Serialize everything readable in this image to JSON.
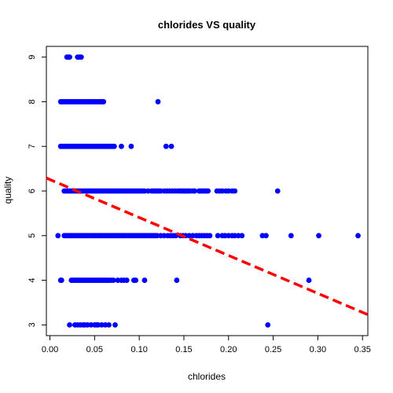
{
  "chart_data": {
    "type": "scatter",
    "title": "chlorides VS quality",
    "xlabel": "chlorides",
    "ylabel": "quality",
    "xlim": [
      -0.004,
      0.356
    ],
    "ylim": [
      2.76,
      9.24
    ],
    "x_ticks": [
      "0.00",
      "0.05",
      "0.10",
      "0.15",
      "0.20",
      "0.25",
      "0.30",
      "0.35"
    ],
    "x_tick_values": [
      0.0,
      0.05,
      0.1,
      0.15,
      0.2,
      0.25,
      0.3,
      0.35
    ],
    "y_ticks": [
      "3",
      "4",
      "5",
      "6",
      "7",
      "8",
      "9"
    ],
    "y_tick_values": [
      3,
      4,
      5,
      6,
      7,
      8,
      9
    ],
    "point_color": "#0000ff",
    "line_color": "#ff0000",
    "regression_line": {
      "x": [
        -0.004,
        0.356
      ],
      "y": [
        6.29,
        3.23
      ]
    },
    "points": [
      {
        "q": 9,
        "x": [
          0.019,
          0.021,
          0.022,
          0.031,
          0.033,
          0.035
        ]
      },
      {
        "q": 8,
        "x": [
          0.012,
          0.014,
          0.016,
          0.018,
          0.02,
          0.022,
          0.024,
          0.026,
          0.028,
          0.03,
          0.032,
          0.034,
          0.036,
          0.038,
          0.04,
          0.042,
          0.044,
          0.046,
          0.048,
          0.05,
          0.052,
          0.054,
          0.056,
          0.058,
          0.06,
          0.121
        ]
      },
      {
        "q": 7,
        "x": [
          0.012,
          0.014,
          0.016,
          0.018,
          0.02,
          0.022,
          0.024,
          0.026,
          0.028,
          0.03,
          0.032,
          0.034,
          0.036,
          0.038,
          0.04,
          0.042,
          0.044,
          0.046,
          0.048,
          0.05,
          0.052,
          0.054,
          0.056,
          0.058,
          0.06,
          0.062,
          0.064,
          0.066,
          0.068,
          0.07,
          0.072,
          0.08,
          0.091,
          0.13,
          0.136
        ]
      },
      {
        "q": 6,
        "x": [
          0.016,
          0.018,
          0.02,
          0.022,
          0.024,
          0.026,
          0.028,
          0.03,
          0.032,
          0.034,
          0.036,
          0.038,
          0.04,
          0.042,
          0.044,
          0.046,
          0.048,
          0.05,
          0.052,
          0.054,
          0.056,
          0.058,
          0.06,
          0.062,
          0.064,
          0.066,
          0.068,
          0.07,
          0.072,
          0.074,
          0.076,
          0.078,
          0.08,
          0.082,
          0.084,
          0.086,
          0.088,
          0.09,
          0.092,
          0.094,
          0.096,
          0.098,
          0.1,
          0.102,
          0.104,
          0.106,
          0.11,
          0.114,
          0.116,
          0.118,
          0.12,
          0.122,
          0.124,
          0.128,
          0.131,
          0.134,
          0.137,
          0.14,
          0.143,
          0.145,
          0.147,
          0.149,
          0.151,
          0.153,
          0.155,
          0.157,
          0.16,
          0.162,
          0.167,
          0.169,
          0.171,
          0.173,
          0.175,
          0.177,
          0.187,
          0.19,
          0.193,
          0.197,
          0.2,
          0.204,
          0.207,
          0.255
        ]
      },
      {
        "q": 5,
        "x": [
          0.009,
          0.016,
          0.018,
          0.02,
          0.022,
          0.024,
          0.026,
          0.028,
          0.03,
          0.032,
          0.034,
          0.036,
          0.038,
          0.04,
          0.042,
          0.044,
          0.046,
          0.048,
          0.05,
          0.052,
          0.054,
          0.056,
          0.058,
          0.06,
          0.062,
          0.064,
          0.066,
          0.068,
          0.07,
          0.072,
          0.074,
          0.076,
          0.078,
          0.08,
          0.082,
          0.084,
          0.086,
          0.088,
          0.09,
          0.092,
          0.094,
          0.096,
          0.098,
          0.1,
          0.102,
          0.104,
          0.106,
          0.108,
          0.11,
          0.112,
          0.114,
          0.116,
          0.118,
          0.12,
          0.124,
          0.128,
          0.132,
          0.135,
          0.138,
          0.141,
          0.146,
          0.149,
          0.152,
          0.156,
          0.16,
          0.164,
          0.167,
          0.17,
          0.173,
          0.176,
          0.179,
          0.188,
          0.193,
          0.196,
          0.2,
          0.204,
          0.207,
          0.211,
          0.215,
          0.238,
          0.242,
          0.27,
          0.301,
          0.345
        ]
      },
      {
        "q": 4,
        "x": [
          0.012,
          0.013,
          0.024,
          0.026,
          0.028,
          0.03,
          0.032,
          0.034,
          0.036,
          0.038,
          0.04,
          0.042,
          0.044,
          0.046,
          0.048,
          0.05,
          0.052,
          0.054,
          0.056,
          0.058,
          0.06,
          0.062,
          0.064,
          0.066,
          0.068,
          0.071,
          0.076,
          0.08,
          0.083,
          0.086,
          0.094,
          0.096,
          0.106,
          0.142,
          0.29
        ]
      },
      {
        "q": 3,
        "x": [
          0.022,
          0.028,
          0.031,
          0.034,
          0.037,
          0.039,
          0.042,
          0.046,
          0.05,
          0.052,
          0.054,
          0.058,
          0.062,
          0.066,
          0.073,
          0.244
        ]
      }
    ]
  }
}
